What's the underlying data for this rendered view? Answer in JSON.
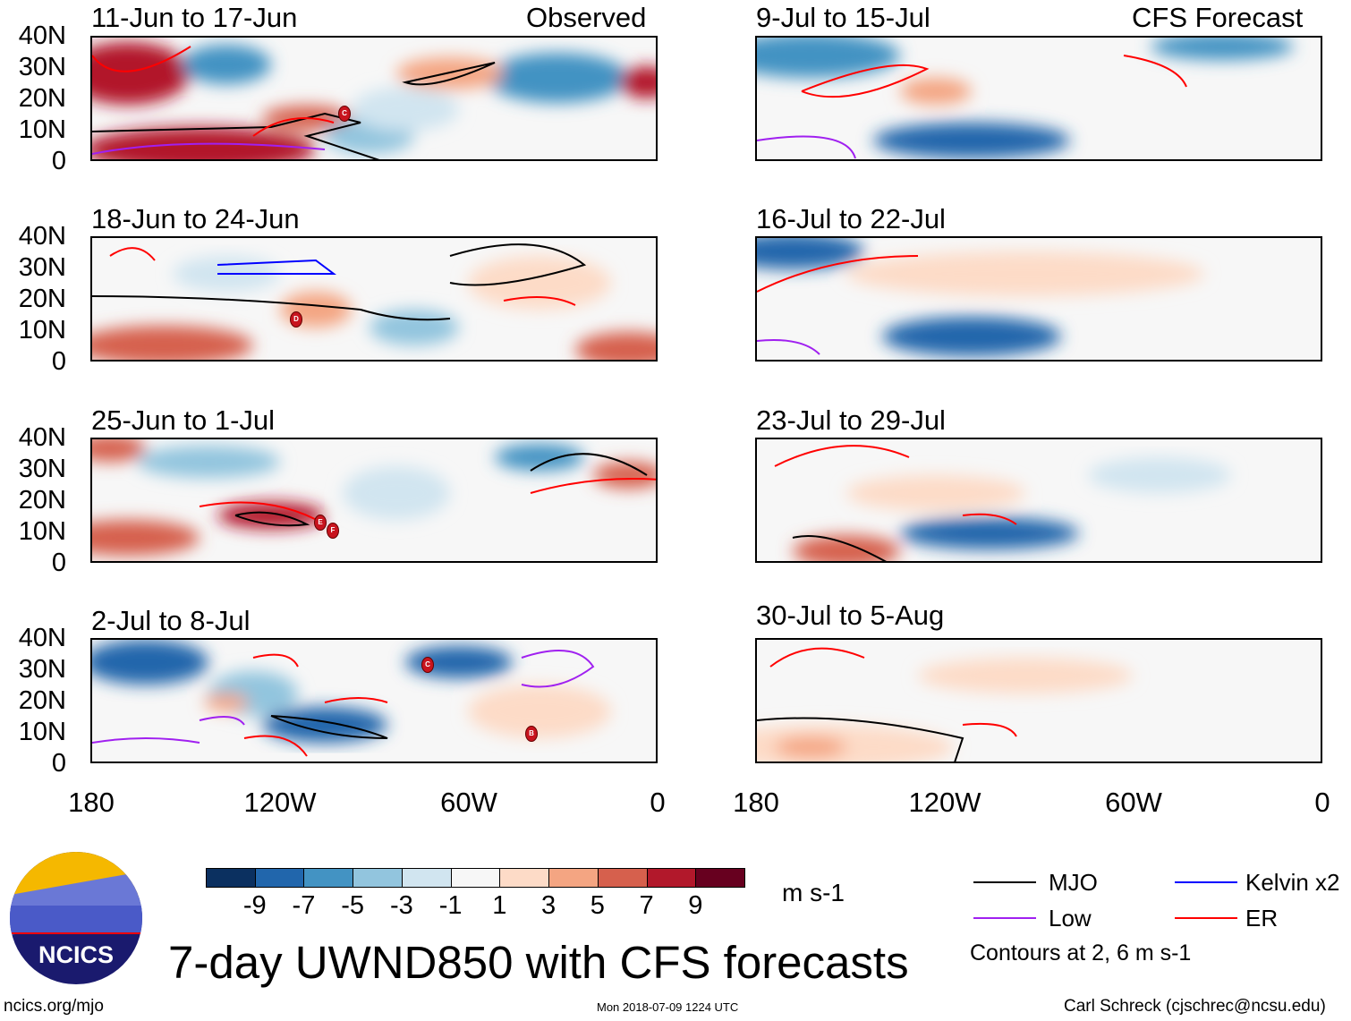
{
  "panels": [
    {
      "title": "11-Jun to 17-Jun",
      "tag": "Observed",
      "storms": [
        "C"
      ]
    },
    {
      "title": "18-Jun to 24-Jun",
      "storms": [
        "D"
      ]
    },
    {
      "title": "25-Jun to 1-Jul",
      "storms": [
        "E",
        "F"
      ]
    },
    {
      "title": "2-Jul to 8-Jul",
      "storms": [
        "C",
        "B"
      ]
    },
    {
      "title": "9-Jul to 15-Jul",
      "tag": "CFS Forecast",
      "storms": []
    },
    {
      "title": "16-Jul to 22-Jul",
      "storms": []
    },
    {
      "title": "23-Jul to 29-Jul",
      "storms": []
    },
    {
      "title": "30-Jul to 5-Aug",
      "storms": []
    }
  ],
  "lat_labels": [
    "40N",
    "30N",
    "20N",
    "10N",
    "0"
  ],
  "lon_labels": [
    "180",
    "120W",
    "60W",
    "0"
  ],
  "colorbar": {
    "colors": [
      "#0b3060",
      "#2166ac",
      "#4393c3",
      "#92c5de",
      "#d1e5f0",
      "#f7f7f7",
      "#fddbc7",
      "#f4a582",
      "#d6604d",
      "#b2182b",
      "#67001f"
    ],
    "ticks": [
      "-9",
      "-7",
      "-5",
      "-3",
      "-1",
      "1",
      "3",
      "5",
      "7",
      "9"
    ],
    "units": "m s-1"
  },
  "legend": {
    "items": [
      {
        "label": "MJO",
        "color": "#000000"
      },
      {
        "label": "Kelvin x2",
        "color": "#0000ff"
      },
      {
        "label": "Low",
        "color": "#a020f0"
      },
      {
        "label": "ER",
        "color": "#ff0000"
      }
    ],
    "note": "Contours at 2, 6 m s-1"
  },
  "logo": "NCICS",
  "title": "7-day UWND850 with CFS forecasts",
  "footer": {
    "url": "ncics.org/mjo",
    "timestamp": "Mon 2018-07-09 1224 UTC",
    "credit": "Carl Schreck (cjschrec@ncsu.edu)"
  }
}
